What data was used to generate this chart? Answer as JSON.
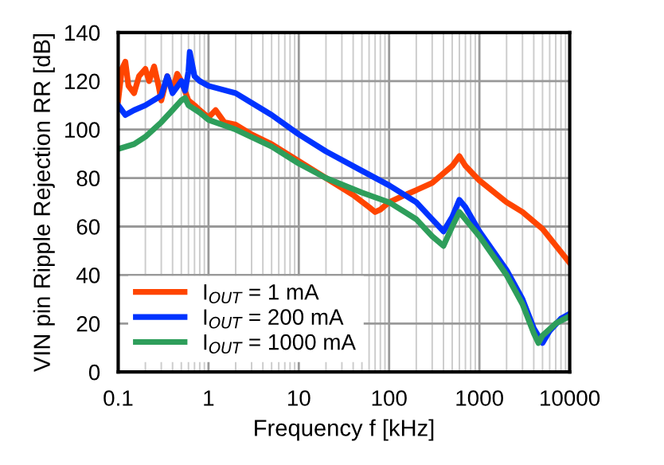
{
  "chart_data": {
    "type": "line",
    "xlabel": "Frequency f [kHz]",
    "ylabel": "VIN pin Ripple Rejection RR [dB]",
    "log": "x",
    "xlim": [
      0.1,
      10000
    ],
    "xticks": [
      0.1,
      1,
      10,
      100,
      1000,
      10000
    ],
    "ylim": [
      0,
      140
    ],
    "yticks": [
      0,
      20,
      40,
      60,
      80,
      100,
      120,
      140
    ],
    "grid": true,
    "legend": "bottom left",
    "line_style": "solid",
    "marker": "none",
    "series": [
      {
        "name": "I$_{OUT}$ = 1 mA",
        "color": "#ff4500",
        "x": [
          0.1,
          0.11,
          0.12,
          0.13,
          0.15,
          0.17,
          0.2,
          0.22,
          0.25,
          0.28,
          0.3,
          0.35,
          0.4,
          0.45,
          0.5,
          0.6,
          0.7,
          0.8,
          1,
          1.2,
          1.5,
          2,
          3,
          5,
          10,
          20,
          40,
          60,
          70,
          80,
          100,
          150,
          200,
          300,
          500,
          600,
          700,
          1000,
          2000,
          3000,
          5000,
          10000
        ],
        "values": [
          112,
          125,
          128,
          118,
          115,
          122,
          125,
          120,
          126,
          118,
          112,
          122,
          116,
          123,
          120,
          112,
          110,
          108,
          105,
          108,
          103,
          102,
          98,
          94,
          87,
          80,
          73,
          68,
          66,
          67,
          70,
          73,
          75,
          78,
          85,
          89,
          85,
          79,
          70,
          66,
          59,
          45
        ]
      },
      {
        "name": "I$_{OUT}$ = 200 mA",
        "color": "#0033ff",
        "x": [
          0.1,
          0.12,
          0.15,
          0.2,
          0.3,
          0.35,
          0.4,
          0.5,
          0.55,
          0.6,
          0.62,
          0.7,
          0.8,
          1,
          2,
          3,
          5,
          10,
          20,
          50,
          100,
          200,
          300,
          400,
          500,
          600,
          700,
          1000,
          2000,
          3000,
          4000,
          5000,
          6000,
          8000,
          10000
        ],
        "values": [
          110,
          106,
          108,
          110,
          114,
          122,
          115,
          120,
          116,
          124,
          132,
          122,
          120,
          118,
          115,
          111,
          106,
          98,
          91,
          83,
          77,
          70,
          63,
          58,
          64,
          71,
          68,
          58,
          42,
          30,
          18,
          12,
          17,
          22,
          24
        ]
      },
      {
        "name": "I$_{OUT}$ = 1000 mA",
        "color": "#2e9e5b",
        "x": [
          0.1,
          0.15,
          0.2,
          0.3,
          0.4,
          0.5,
          0.55,
          0.6,
          0.8,
          1,
          2,
          5,
          10,
          20,
          50,
          100,
          200,
          300,
          400,
          500,
          600,
          1000,
          2000,
          3000,
          4000,
          4500,
          5000,
          7000,
          10000
        ],
        "values": [
          92,
          94,
          97,
          103,
          108,
          112,
          113,
          110,
          107,
          104,
          100,
          93,
          86,
          80,
          74,
          70,
          63,
          56,
          52,
          60,
          66,
          56,
          40,
          28,
          16,
          12,
          15,
          20,
          23
        ]
      }
    ]
  }
}
